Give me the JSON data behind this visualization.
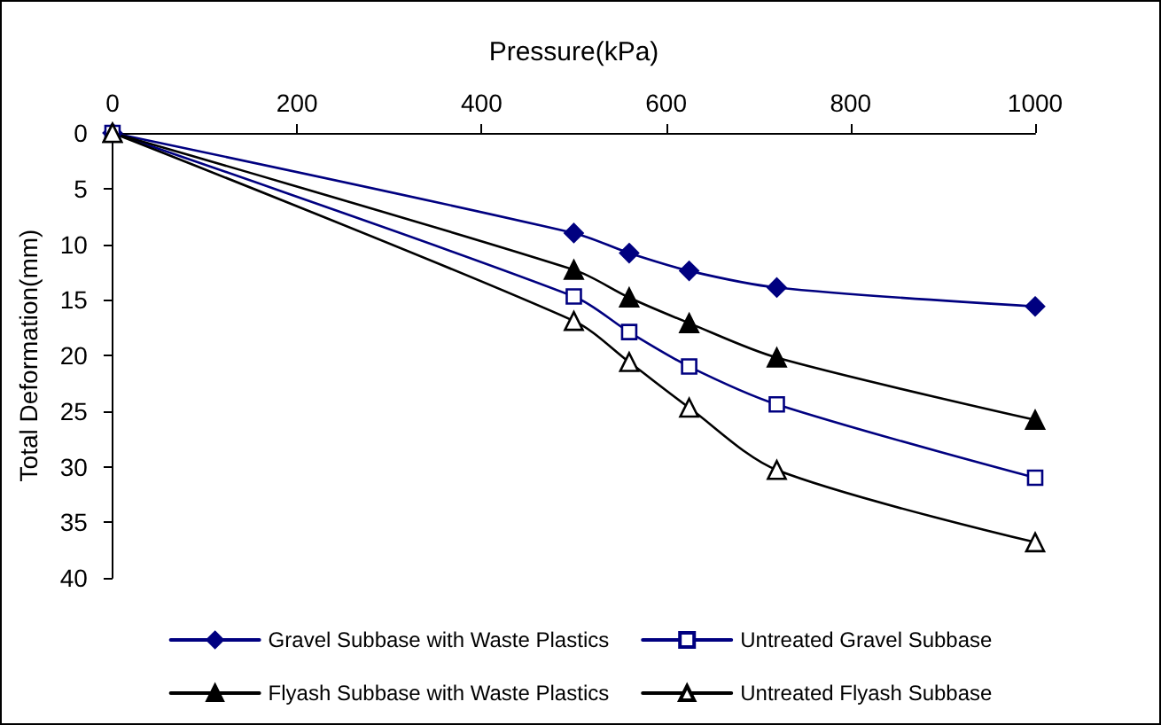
{
  "chart_data": {
    "type": "line",
    "xlabel": "Pressure(kPa)",
    "ylabel": "Total Deformation(mm)",
    "x": [
      0,
      500,
      560,
      625,
      720,
      1000
    ],
    "xlim": [
      0,
      1000
    ],
    "xticks": [
      0,
      200,
      400,
      600,
      800,
      1000
    ],
    "ylim": [
      40,
      0
    ],
    "yticks": [
      0,
      5,
      10,
      15,
      20,
      25,
      30,
      35,
      40
    ],
    "grid": false,
    "legend": "bottom",
    "line_style": "solid",
    "series": [
      {
        "name": "Gravel Subbase with Waste Plastics",
        "color": "#000080",
        "marker": "diamond",
        "values": [
          0,
          9.0,
          10.8,
          12.4,
          13.9,
          15.6
        ]
      },
      {
        "name": "Untreated Gravel Subbase",
        "color": "#000080",
        "marker": "square",
        "values": [
          0,
          14.7,
          17.9,
          21.0,
          24.4,
          31.0
        ]
      },
      {
        "name": "Flyash Subbase with Waste Plastics",
        "color": "#000000",
        "marker": "triangle",
        "values": [
          0,
          12.3,
          14.8,
          17.1,
          20.2,
          25.8
        ]
      },
      {
        "name": "Untreated Flyash Subbase",
        "color": "#000000",
        "marker": "triangle",
        "values": [
          0,
          16.9,
          20.6,
          24.7,
          30.3,
          36.8
        ]
      }
    ]
  }
}
